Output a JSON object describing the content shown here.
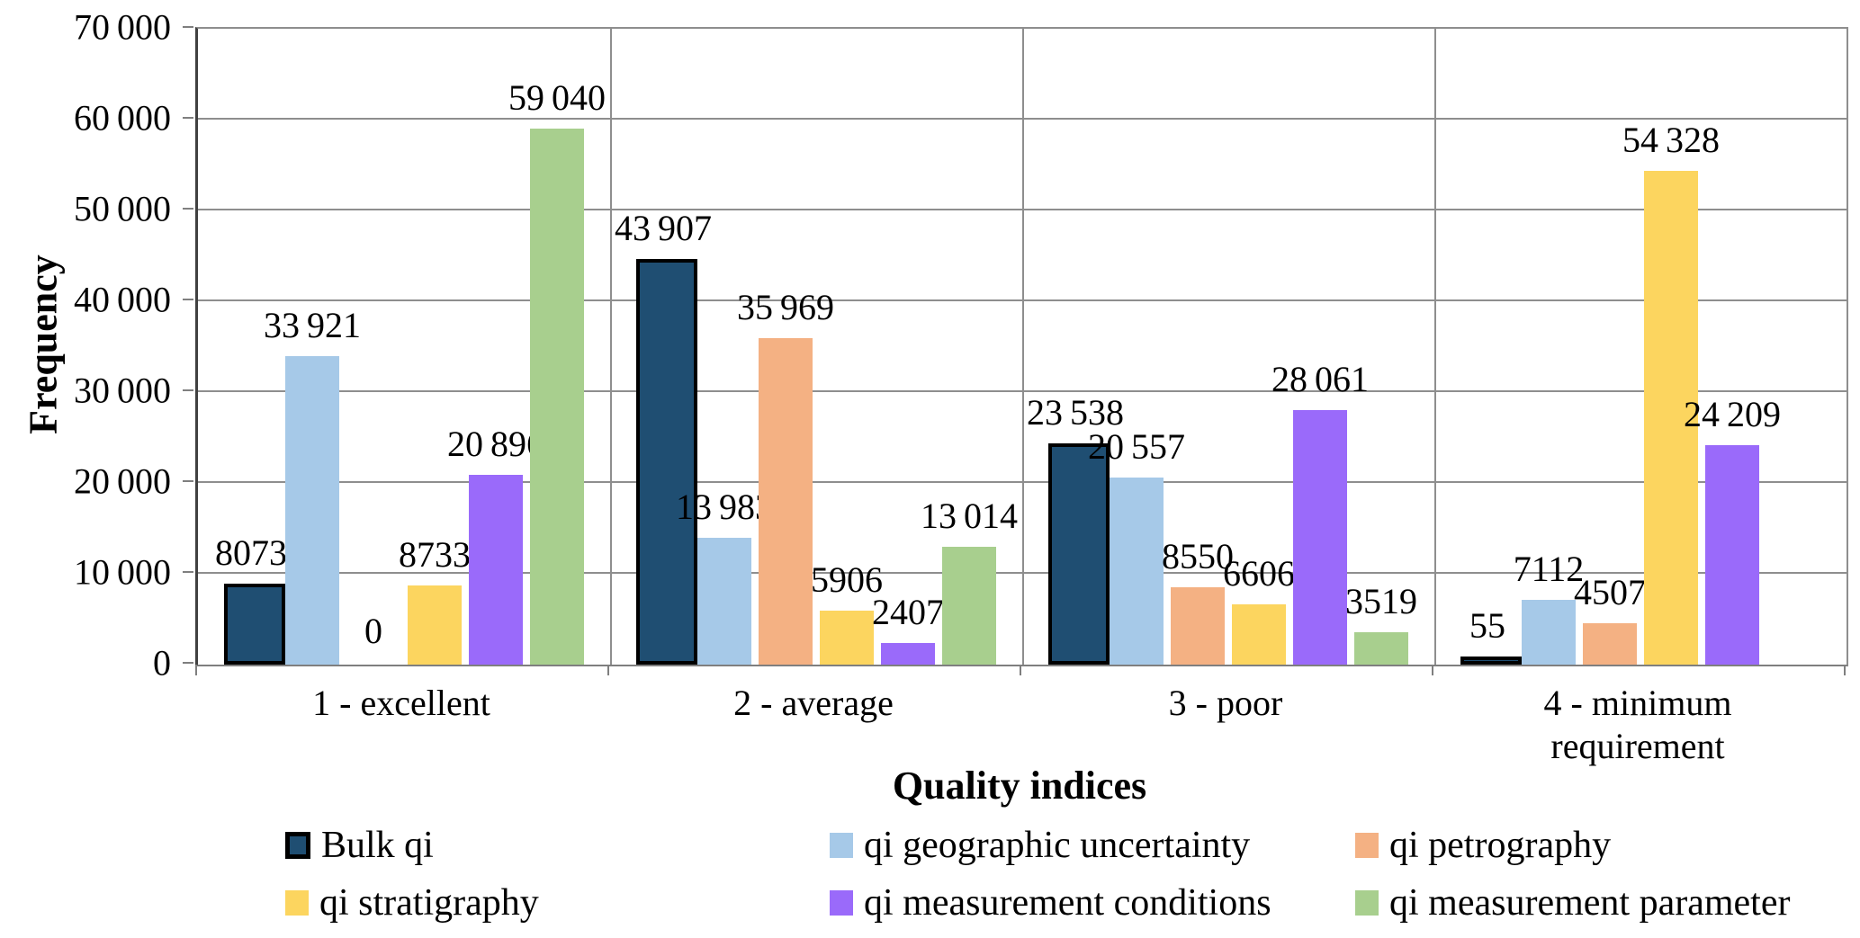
{
  "chart_data": {
    "type": "bar",
    "title": "",
    "xlabel": "Quality indices",
    "ylabel": "Frequency",
    "ylim": [
      0,
      70000
    ],
    "ytick_step": 10000,
    "yticks": [
      0,
      10000,
      20000,
      30000,
      40000,
      50000,
      60000,
      70000
    ],
    "grid": true,
    "legend_position": "bottom",
    "categories": [
      "1 - excellent",
      "2 - average",
      "3 - poor",
      "4 - minimum requirement"
    ],
    "series": [
      {
        "name": "Bulk qi",
        "color": "#1F4E72",
        "border_color": "#000000",
        "values": [
          8073,
          43907,
          23538,
          55
        ]
      },
      {
        "name": "qi geographic uncertainty",
        "color": "#A6C9E8",
        "values": [
          33921,
          13983,
          20557,
          7112
        ]
      },
      {
        "name": "qi petrography",
        "color": "#F4B183",
        "values": [
          0,
          35969,
          8550,
          4507
        ]
      },
      {
        "name": "qi stratigraphy",
        "color": "#FCD55F",
        "values": [
          8733,
          5906,
          6606,
          54328
        ]
      },
      {
        "name": "qi measurement conditions",
        "color": "#9A6AFA",
        "values": [
          20896,
          2407,
          28061,
          24209
        ]
      },
      {
        "name": "qi measurement parameter",
        "color": "#A8CF8E",
        "values": [
          59040,
          13014,
          3519,
          null
        ]
      }
    ],
    "data_labels_shown": true,
    "thousands_separator": "thin-space"
  }
}
